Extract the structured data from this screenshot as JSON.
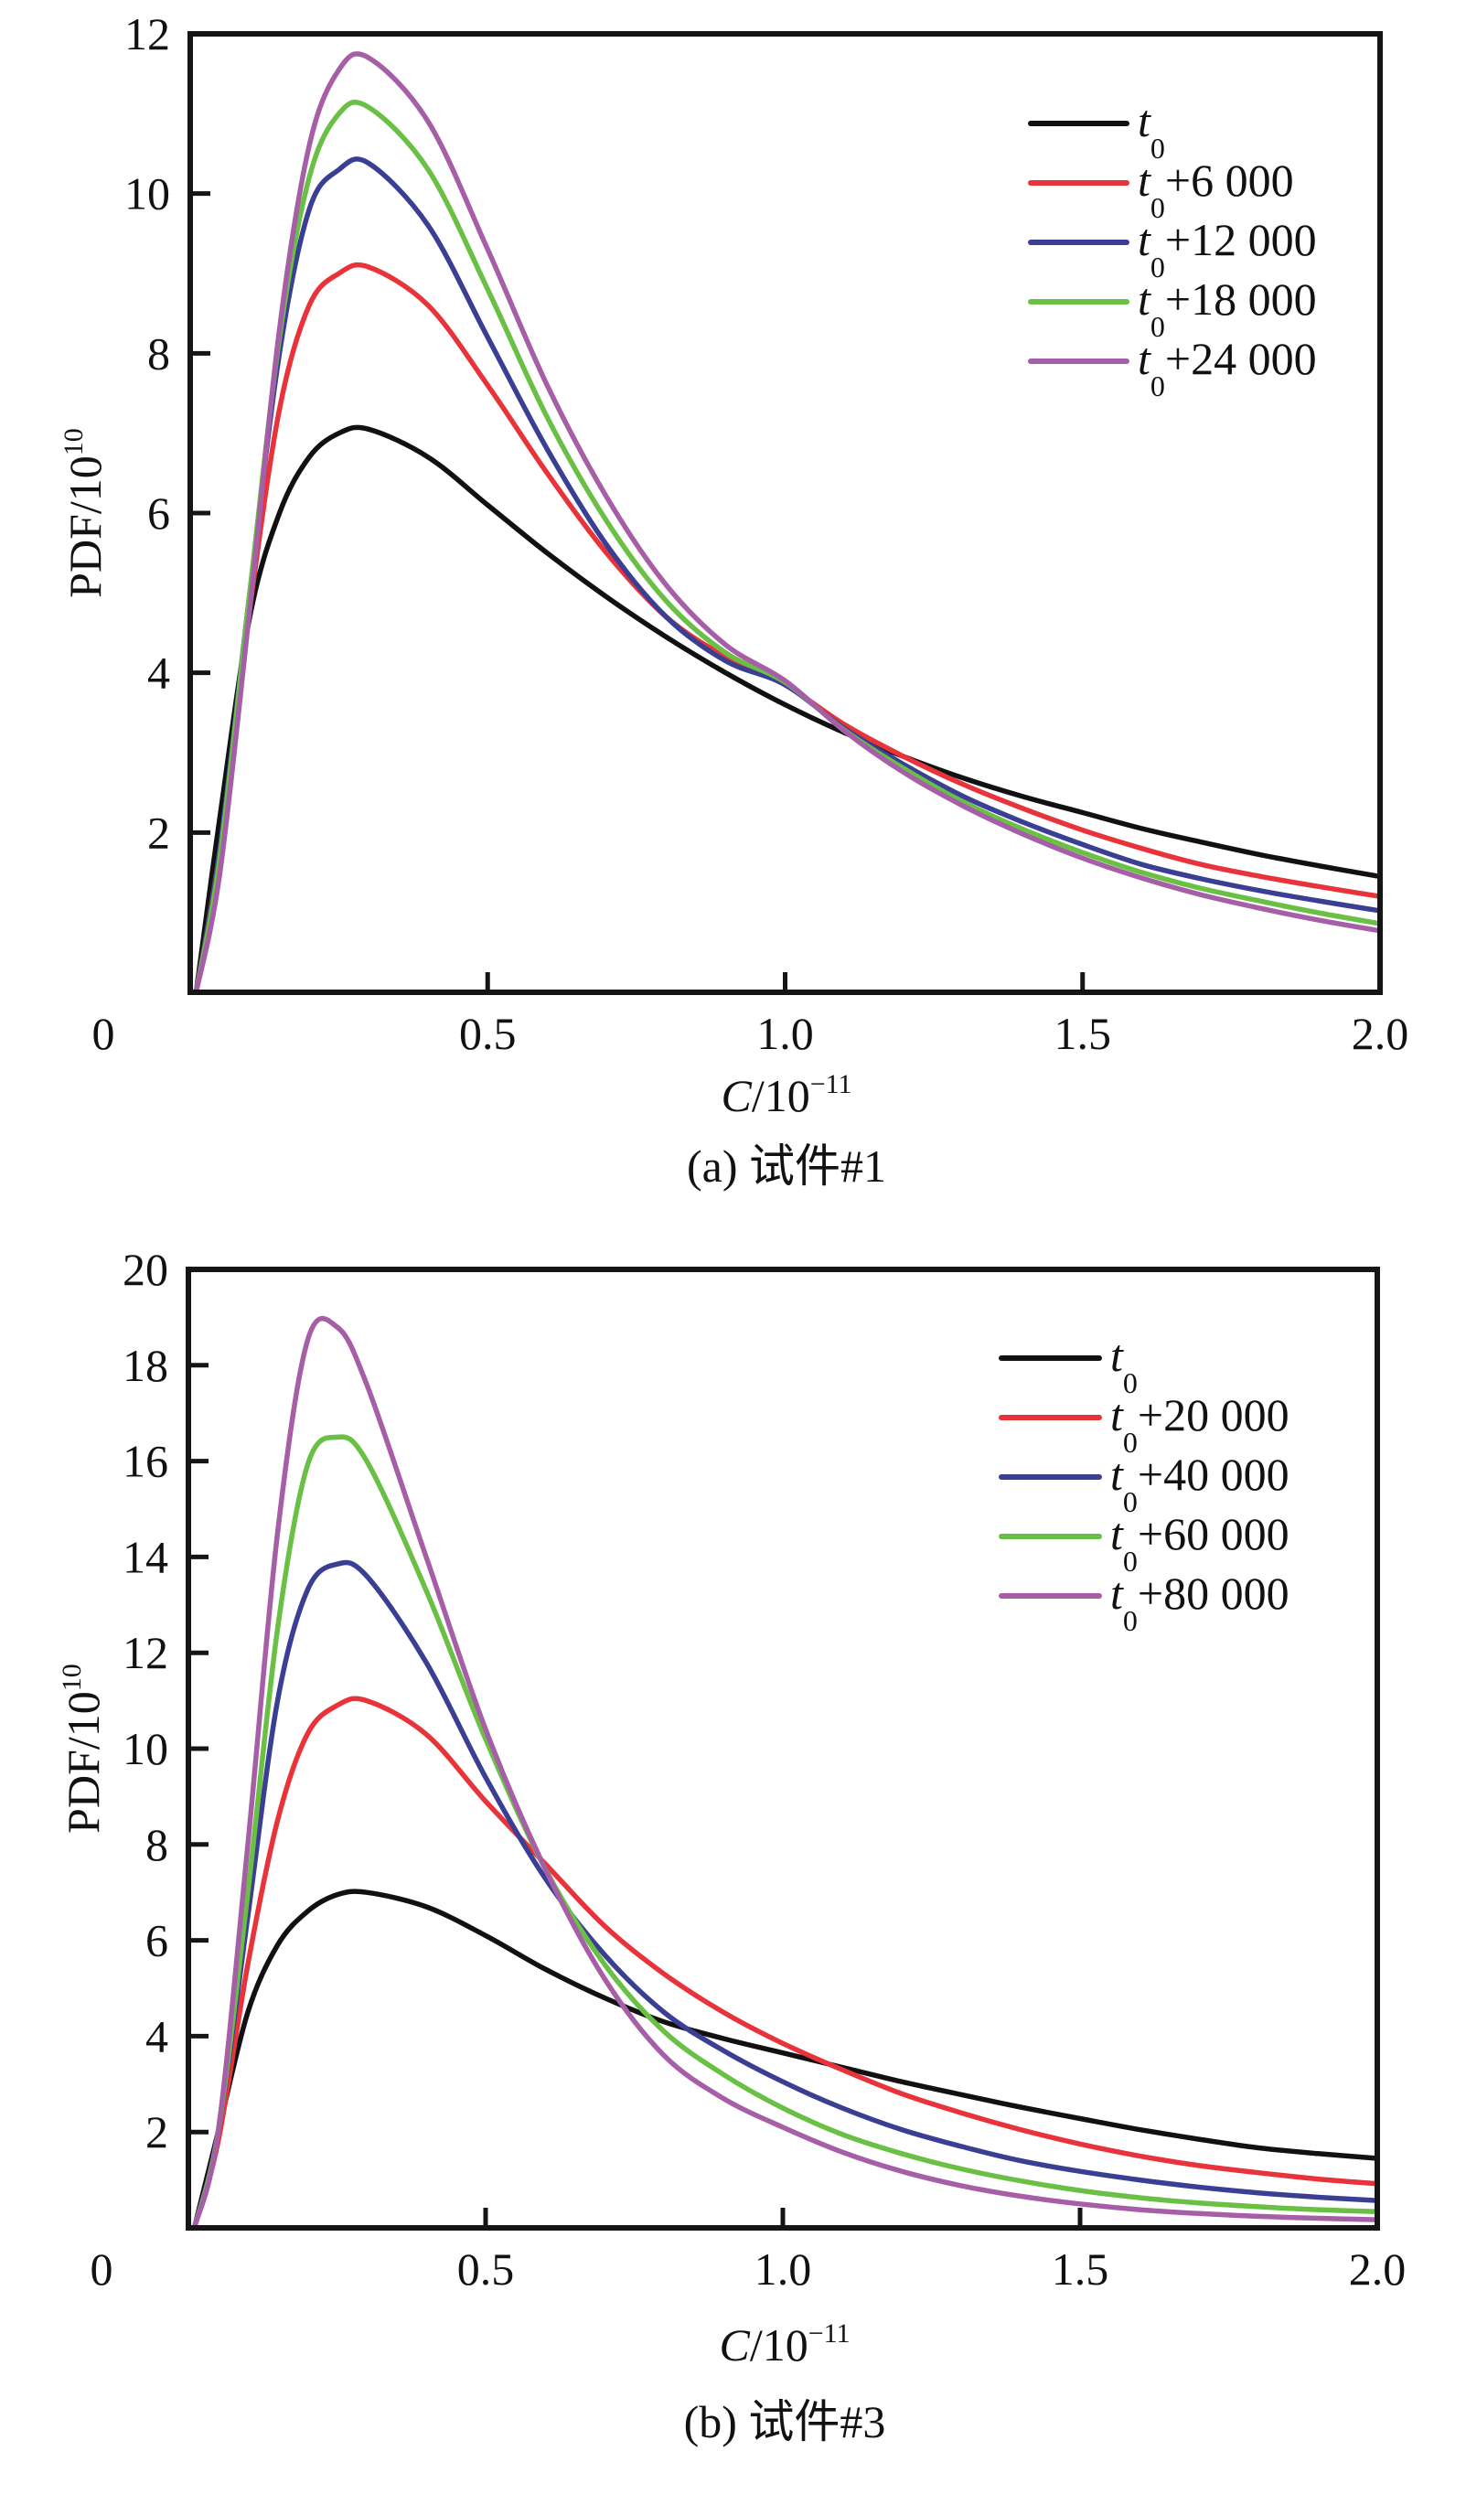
{
  "chart_data": [
    {
      "type": "line",
      "panel_id": "a",
      "caption": "(a) 试件#1",
      "xlabel_main": "C",
      "xlabel_unit": "/10",
      "xlabel_exp": "−11",
      "ylabel_main": "PDF/10",
      "ylabel_exp": "10",
      "xlim": [
        0,
        2.0
      ],
      "ylim": [
        0,
        12
      ],
      "xticks": [
        0,
        0.5,
        1.0,
        1.5,
        2.0
      ],
      "xtick_labels": [
        "0",
        "0.5",
        "1.0",
        "1.5",
        "2.0"
      ],
      "yticks": [
        2,
        4,
        6,
        8,
        10,
        12
      ],
      "ytick_labels": [
        "2",
        "4",
        "6",
        "8",
        "10",
        "12"
      ],
      "grid": false,
      "legend_position": "top-right",
      "x": [
        0.01,
        0.05,
        0.1,
        0.15,
        0.2,
        0.25,
        0.3,
        0.4,
        0.5,
        0.6,
        0.7,
        0.8,
        0.9,
        1.0,
        1.1,
        1.2,
        1.3,
        1.4,
        1.5,
        1.6,
        1.7,
        1.8,
        1.9,
        2.0
      ],
      "series": [
        {
          "name_base": "t",
          "name_sub": "0",
          "name_suffix": "",
          "color": "#111111",
          "values": [
            0,
            2.2,
            4.7,
            6.0,
            6.7,
            7.0,
            7.05,
            6.7,
            6.1,
            5.5,
            4.95,
            4.45,
            4.0,
            3.6,
            3.25,
            2.95,
            2.68,
            2.45,
            2.25,
            2.05,
            1.88,
            1.72,
            1.58,
            1.45
          ]
        },
        {
          "name_base": "t",
          "name_sub": "0",
          "name_suffix": "+6 000",
          "color": "#e8333a",
          "values": [
            0,
            1.8,
            4.8,
            7.3,
            8.6,
            9.0,
            9.08,
            8.6,
            7.6,
            6.5,
            5.5,
            4.7,
            4.2,
            3.85,
            3.35,
            2.95,
            2.6,
            2.3,
            2.03,
            1.8,
            1.6,
            1.45,
            1.32,
            1.2
          ]
        },
        {
          "name_base": "t",
          "name_sub": "0",
          "name_suffix": "+12 000",
          "color": "#3b3f94",
          "values": [
            0,
            1.8,
            5.0,
            8.0,
            9.8,
            10.3,
            10.38,
            9.6,
            8.2,
            6.8,
            5.6,
            4.7,
            4.15,
            3.85,
            3.3,
            2.85,
            2.45,
            2.13,
            1.85,
            1.6,
            1.42,
            1.27,
            1.14,
            1.02
          ]
        },
        {
          "name_base": "t",
          "name_sub": "0",
          "name_suffix": "+18 000",
          "color": "#6abf45",
          "values": [
            0,
            1.7,
            5.0,
            8.2,
            10.2,
            11.0,
            11.08,
            10.3,
            8.8,
            7.2,
            5.9,
            4.9,
            4.25,
            3.88,
            3.28,
            2.8,
            2.38,
            2.04,
            1.75,
            1.5,
            1.3,
            1.14,
            0.99,
            0.86
          ]
        },
        {
          "name_base": "t",
          "name_sub": "0",
          "name_suffix": "+24 000",
          "color": "#a65ea6",
          "values": [
            0,
            1.5,
            4.8,
            8.3,
            10.6,
            11.55,
            11.7,
            10.9,
            9.3,
            7.6,
            6.2,
            5.1,
            4.35,
            3.9,
            3.27,
            2.75,
            2.33,
            1.98,
            1.68,
            1.43,
            1.22,
            1.05,
            0.9,
            0.77
          ]
        }
      ]
    },
    {
      "type": "line",
      "panel_id": "b",
      "caption": "(b) 试件#3",
      "xlabel_main": "C",
      "xlabel_unit": "/10",
      "xlabel_exp": "−11",
      "ylabel_main": "PDF/10",
      "ylabel_exp": "10",
      "xlim": [
        0,
        2.0
      ],
      "ylim": [
        0,
        20
      ],
      "xticks": [
        0,
        0.5,
        1.0,
        1.5,
        2.0
      ],
      "xtick_labels": [
        "0",
        "0.5",
        "1.0",
        "1.5",
        "2.0"
      ],
      "yticks": [
        2,
        4,
        6,
        8,
        10,
        12,
        14,
        16,
        18,
        20
      ],
      "ytick_labels": [
        "2",
        "4",
        "6",
        "8",
        "10",
        "12",
        "14",
        "16",
        "18",
        "20"
      ],
      "grid": false,
      "legend_position": "top-right",
      "x": [
        0.01,
        0.05,
        0.1,
        0.15,
        0.2,
        0.25,
        0.3,
        0.4,
        0.5,
        0.6,
        0.7,
        0.8,
        0.9,
        1.0,
        1.1,
        1.2,
        1.3,
        1.4,
        1.5,
        1.6,
        1.7,
        1.8,
        1.9,
        2.0
      ],
      "series": [
        {
          "name_base": "t",
          "name_sub": "0",
          "name_suffix": "",
          "color": "#111111",
          "values": [
            0,
            2.0,
            4.5,
            5.9,
            6.6,
            6.95,
            7.0,
            6.7,
            6.1,
            5.4,
            4.8,
            4.3,
            3.95,
            3.65,
            3.35,
            3.05,
            2.78,
            2.52,
            2.28,
            2.05,
            1.85,
            1.67,
            1.55,
            1.45
          ]
        },
        {
          "name_base": "t",
          "name_sub": "0",
          "name_suffix": "+20 000",
          "color": "#e8333a",
          "values": [
            0,
            1.8,
            5.5,
            8.5,
            10.3,
            10.9,
            11.0,
            10.3,
            8.9,
            7.6,
            6.3,
            5.3,
            4.5,
            3.85,
            3.3,
            2.8,
            2.4,
            2.05,
            1.75,
            1.5,
            1.3,
            1.15,
            1.02,
            0.92
          ]
        },
        {
          "name_base": "t",
          "name_sub": "0",
          "name_suffix": "+40 000",
          "color": "#3b3f94",
          "values": [
            0,
            2.0,
            6.5,
            11.0,
            13.3,
            13.85,
            13.6,
            11.8,
            9.4,
            7.3,
            5.7,
            4.5,
            3.7,
            3.05,
            2.5,
            2.05,
            1.7,
            1.4,
            1.18,
            1.0,
            0.85,
            0.73,
            0.64,
            0.57
          ]
        },
        {
          "name_base": "t",
          "name_sub": "0",
          "name_suffix": "+60 000",
          "color": "#6abf45",
          "values": [
            0,
            2.0,
            7.0,
            12.5,
            15.9,
            16.5,
            16.0,
            13.3,
            10.2,
            7.5,
            5.5,
            4.1,
            3.2,
            2.5,
            1.95,
            1.55,
            1.23,
            0.98,
            0.78,
            0.63,
            0.52,
            0.44,
            0.38,
            0.34
          ]
        },
        {
          "name_base": "t",
          "name_sub": "0",
          "name_suffix": "+80 000",
          "color": "#a65ea6",
          "values": [
            0,
            2.0,
            8.0,
            14.5,
            18.5,
            18.8,
            17.6,
            14.0,
            10.4,
            7.5,
            5.2,
            3.6,
            2.7,
            2.1,
            1.58,
            1.18,
            0.88,
            0.66,
            0.5,
            0.38,
            0.3,
            0.24,
            0.2,
            0.17
          ]
        }
      ]
    }
  ]
}
